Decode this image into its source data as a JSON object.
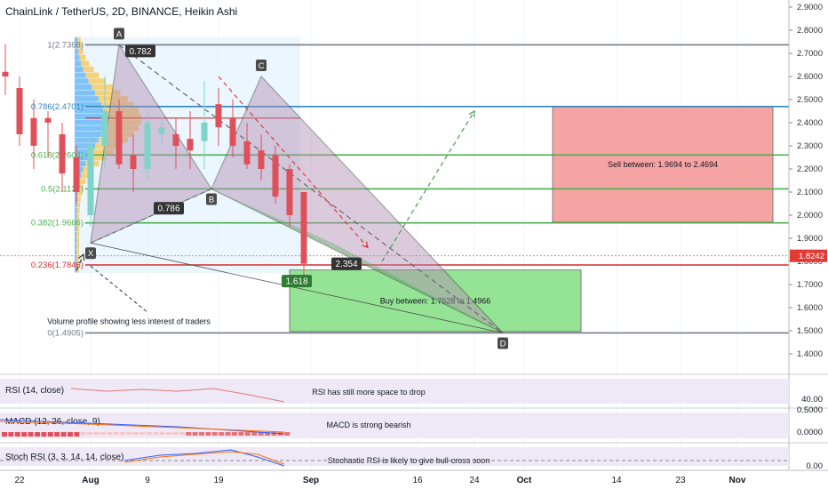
{
  "header": {
    "title": "ChainLink / TetherUS, 2D, BINANCE, Heikin Ashi"
  },
  "colors": {
    "up": "#7fd3c9",
    "down": "#e0505a",
    "pattern_fill": "#b08bb0",
    "buy_zone": "#8ae08a",
    "sell_zone": "#f59a9a",
    "price_tag": "#e53935",
    "fib_blue": "#2e86c1",
    "fib_green": "#4caf50",
    "fib_red": "#d32f2f",
    "fib_gray": "#787b86"
  },
  "chart_data": {
    "type": "candlestick",
    "title": "ChainLink / TetherUS, 2D, BINANCE, Heikin Ashi",
    "ylim": [
      1.3,
      2.95
    ],
    "y_ticks": [
      "2.9000",
      "2.8000",
      "2.7000",
      "2.6000",
      "2.5000",
      "2.4000",
      "2.3000",
      "2.2000",
      "2.1000",
      "2.0000",
      "1.9000",
      "1.8000",
      "1.7000",
      "1.6000",
      "1.5000",
      "1.4000"
    ],
    "x_ticks": [
      {
        "label": "22",
        "day": 0
      },
      {
        "label": "Aug",
        "day": 10
      },
      {
        "label": "9",
        "day": 18
      },
      {
        "label": "19",
        "day": 28
      },
      {
        "label": "Sep",
        "day": 41
      },
      {
        "label": "16",
        "day": 56
      },
      {
        "label": "24",
        "day": 64
      },
      {
        "label": "Oct",
        "day": 71
      },
      {
        "label": "14",
        "day": 84
      },
      {
        "label": "23",
        "day": 93
      },
      {
        "label": "Nov",
        "day": 101
      }
    ],
    "xlim": [
      -2,
      107
    ],
    "last_price": "1.8242",
    "last_price_value": 1.8242,
    "candles": [
      {
        "d": -2,
        "o": 2.62,
        "h": 2.74,
        "l": 2.52,
        "c": 2.6
      },
      {
        "d": 0,
        "o": 2.55,
        "h": 2.6,
        "l": 2.3,
        "c": 2.35
      },
      {
        "d": 2,
        "o": 2.42,
        "h": 2.5,
        "l": 2.2,
        "c": 2.3
      },
      {
        "d": 4,
        "o": 2.42,
        "h": 2.45,
        "l": 2.25,
        "c": 2.4
      },
      {
        "d": 6,
        "o": 2.35,
        "h": 2.4,
        "l": 2.1,
        "c": 2.18
      },
      {
        "d": 8,
        "o": 2.25,
        "h": 2.3,
        "l": 2.05,
        "c": 2.1
      },
      {
        "d": 10,
        "o": 2.0,
        "h": 2.35,
        "l": 1.95,
        "c": 2.3
      },
      {
        "d": 12,
        "o": 2.3,
        "h": 2.6,
        "l": 2.2,
        "c": 2.45
      },
      {
        "d": 14,
        "o": 2.45,
        "h": 2.5,
        "l": 2.2,
        "c": 2.22
      },
      {
        "d": 16,
        "o": 2.26,
        "h": 2.35,
        "l": 2.1,
        "c": 2.2
      },
      {
        "d": 18,
        "o": 2.2,
        "h": 2.45,
        "l": 2.15,
        "c": 2.4
      },
      {
        "d": 20,
        "o": 2.35,
        "h": 2.42,
        "l": 2.3,
        "c": 2.38
      },
      {
        "d": 22,
        "o": 2.35,
        "h": 2.42,
        "l": 2.2,
        "c": 2.3
      },
      {
        "d": 24,
        "o": 2.33,
        "h": 2.45,
        "l": 2.2,
        "c": 2.28
      },
      {
        "d": 26,
        "o": 2.32,
        "h": 2.58,
        "l": 2.2,
        "c": 2.4
      },
      {
        "d": 28,
        "o": 2.48,
        "h": 2.55,
        "l": 2.3,
        "c": 2.38
      },
      {
        "d": 30,
        "o": 2.42,
        "h": 2.5,
        "l": 2.25,
        "c": 2.3
      },
      {
        "d": 32,
        "o": 2.32,
        "h": 2.4,
        "l": 2.2,
        "c": 2.22
      },
      {
        "d": 34,
        "o": 2.28,
        "h": 2.35,
        "l": 2.15,
        "c": 2.2
      },
      {
        "d": 36,
        "o": 2.26,
        "h": 2.3,
        "l": 2.05,
        "c": 2.08
      },
      {
        "d": 38,
        "o": 2.2,
        "h": 2.22,
        "l": 1.95,
        "c": 2.0
      },
      {
        "d": 40,
        "o": 2.1,
        "h": 2.1,
        "l": 1.74,
        "c": 1.79
      }
    ],
    "volume_profile_label": "Volume profile showing less interest of traders",
    "harmonic": {
      "points": [
        {
          "label": "X",
          "d": 10,
          "v": 1.88
        },
        {
          "label": "A",
          "d": 14,
          "v": 2.7368
        },
        {
          "label": "B",
          "d": 27,
          "v": 2.1137
        },
        {
          "label": "C",
          "d": 34,
          "v": 2.6
        },
        {
          "label": "D",
          "d": 68,
          "v": 1.4905
        }
      ],
      "ratios": [
        {
          "text": "0.782",
          "d": 17,
          "v": 2.71
        },
        {
          "text": "0.786",
          "d": 21,
          "v": 2.03
        },
        {
          "text": "2.354",
          "d": 46,
          "v": 1.79
        },
        {
          "text": "1.618",
          "d": 39,
          "v": 1.715
        }
      ]
    },
    "fib_levels": [
      {
        "ratio_label": "1(2.7368)",
        "value": 2.7368,
        "color": "fib_gray"
      },
      {
        "ratio_label": "0.786(2.4701)",
        "value": 2.4701,
        "color": "fib_blue"
      },
      {
        "ratio_label": "0.618(2.2604)",
        "value": 2.2604,
        "color": "fib_green"
      },
      {
        "ratio_label": "0.5(2.1137)",
        "value": 2.1137,
        "color": "fib_green"
      },
      {
        "ratio_label": "0.382(1.9666)",
        "value": 1.9666,
        "color": "fib_green"
      },
      {
        "ratio_label": "0.236(1.7846)",
        "value": 1.7846,
        "color": "fib_red"
      },
      {
        "ratio_label": "0(1.4905)",
        "value": 1.4905,
        "color": "fib_gray"
      }
    ],
    "zones": [
      {
        "label": "Sell between: 1.9694 to 2.4694",
        "d0": 75,
        "d1": 106,
        "v0": 1.9694,
        "v1": 2.4694,
        "color": "sell_zone"
      },
      {
        "label": "Buy between: 1.7628 to 1.4966",
        "d0": 38,
        "d1": 79,
        "v0": 1.4966,
        "v1": 1.7628,
        "color": "buy_zone"
      }
    ],
    "indicators": [
      {
        "name": "RSI (14, close)",
        "note": "RSI has still more space to drop",
        "tick": "40.00"
      },
      {
        "name": "MACD (12, 26, close, 9)",
        "note": "MACD is strong bearish",
        "tick_top": "0.5000",
        "tick_mid": "0.0000"
      },
      {
        "name": "Stoch RSI (3, 3, 14, 14, close)",
        "note": "Stochastic RSI is likely to give bull-cross soon",
        "tick": "0.00"
      }
    ]
  }
}
